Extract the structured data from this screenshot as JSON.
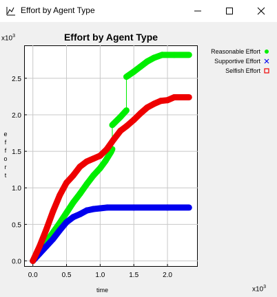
{
  "window": {
    "title": "Effort by Agent Type",
    "app_icon": "chart-app-icon",
    "controls": [
      "minimize-icon",
      "maximize-icon",
      "close-icon"
    ]
  },
  "chart_data": {
    "type": "line",
    "title": "Effort by Agent Type",
    "xlabel": "time",
    "ylabel": "effort",
    "x_multiplier": "x10^3",
    "y_multiplier": "x10^3",
    "xlim": [
      -0.13,
      2.45
    ],
    "ylim": [
      -0.08,
      2.95
    ],
    "x_ticks": [
      "0.0",
      "0.5",
      "1.0",
      "1.5",
      "2.0"
    ],
    "y_ticks": [
      "0.0",
      "0.5",
      "1.0",
      "1.5",
      "2.0",
      "2.5"
    ],
    "legend_position": "right",
    "series": [
      {
        "name": "Reasonable Effort",
        "color": "#00ee00",
        "marker": "dot",
        "points": [
          [
            0.0,
            0.0
          ],
          [
            0.2,
            0.26
          ],
          [
            0.4,
            0.52
          ],
          [
            0.5,
            0.66
          ],
          [
            0.6,
            0.8
          ],
          [
            0.7,
            0.92
          ],
          [
            0.8,
            1.05
          ],
          [
            0.9,
            1.17
          ],
          [
            1.0,
            1.27
          ],
          [
            1.08,
            1.37
          ],
          [
            1.16,
            1.49
          ],
          [
            1.18,
            1.53
          ],
          [
            1.18,
            1.86
          ],
          [
            1.3,
            1.97
          ],
          [
            1.39,
            2.06
          ],
          [
            1.39,
            2.52
          ],
          [
            1.5,
            2.59
          ],
          [
            1.6,
            2.66
          ],
          [
            1.7,
            2.73
          ],
          [
            1.8,
            2.78
          ],
          [
            1.92,
            2.82
          ],
          [
            2.1,
            2.82
          ],
          [
            2.32,
            2.82
          ]
        ]
      },
      {
        "name": "Supportive Effort",
        "color": "#0000ee",
        "marker": "x",
        "points": [
          [
            0.0,
            0.0
          ],
          [
            0.1,
            0.1
          ],
          [
            0.2,
            0.2
          ],
          [
            0.3,
            0.3
          ],
          [
            0.4,
            0.42
          ],
          [
            0.5,
            0.53
          ],
          [
            0.6,
            0.6
          ],
          [
            0.7,
            0.64
          ],
          [
            0.8,
            0.69
          ],
          [
            0.9,
            0.71
          ],
          [
            1.0,
            0.72
          ],
          [
            1.1,
            0.73
          ],
          [
            1.5,
            0.73
          ],
          [
            2.0,
            0.73
          ],
          [
            2.32,
            0.73
          ]
        ]
      },
      {
        "name": "Selfish Effort",
        "color": "#ee0000",
        "marker": "square",
        "points": [
          [
            0.0,
            0.0
          ],
          [
            0.1,
            0.2
          ],
          [
            0.2,
            0.43
          ],
          [
            0.3,
            0.68
          ],
          [
            0.4,
            0.9
          ],
          [
            0.5,
            1.07
          ],
          [
            0.6,
            1.17
          ],
          [
            0.7,
            1.29
          ],
          [
            0.8,
            1.36
          ],
          [
            0.9,
            1.4
          ],
          [
            1.0,
            1.44
          ],
          [
            1.1,
            1.53
          ],
          [
            1.2,
            1.66
          ],
          [
            1.3,
            1.78
          ],
          [
            1.4,
            1.85
          ],
          [
            1.5,
            1.93
          ],
          [
            1.6,
            2.02
          ],
          [
            1.7,
            2.1
          ],
          [
            1.8,
            2.15
          ],
          [
            1.9,
            2.19
          ],
          [
            2.0,
            2.2
          ],
          [
            2.1,
            2.24
          ],
          [
            2.32,
            2.24
          ]
        ]
      }
    ]
  }
}
